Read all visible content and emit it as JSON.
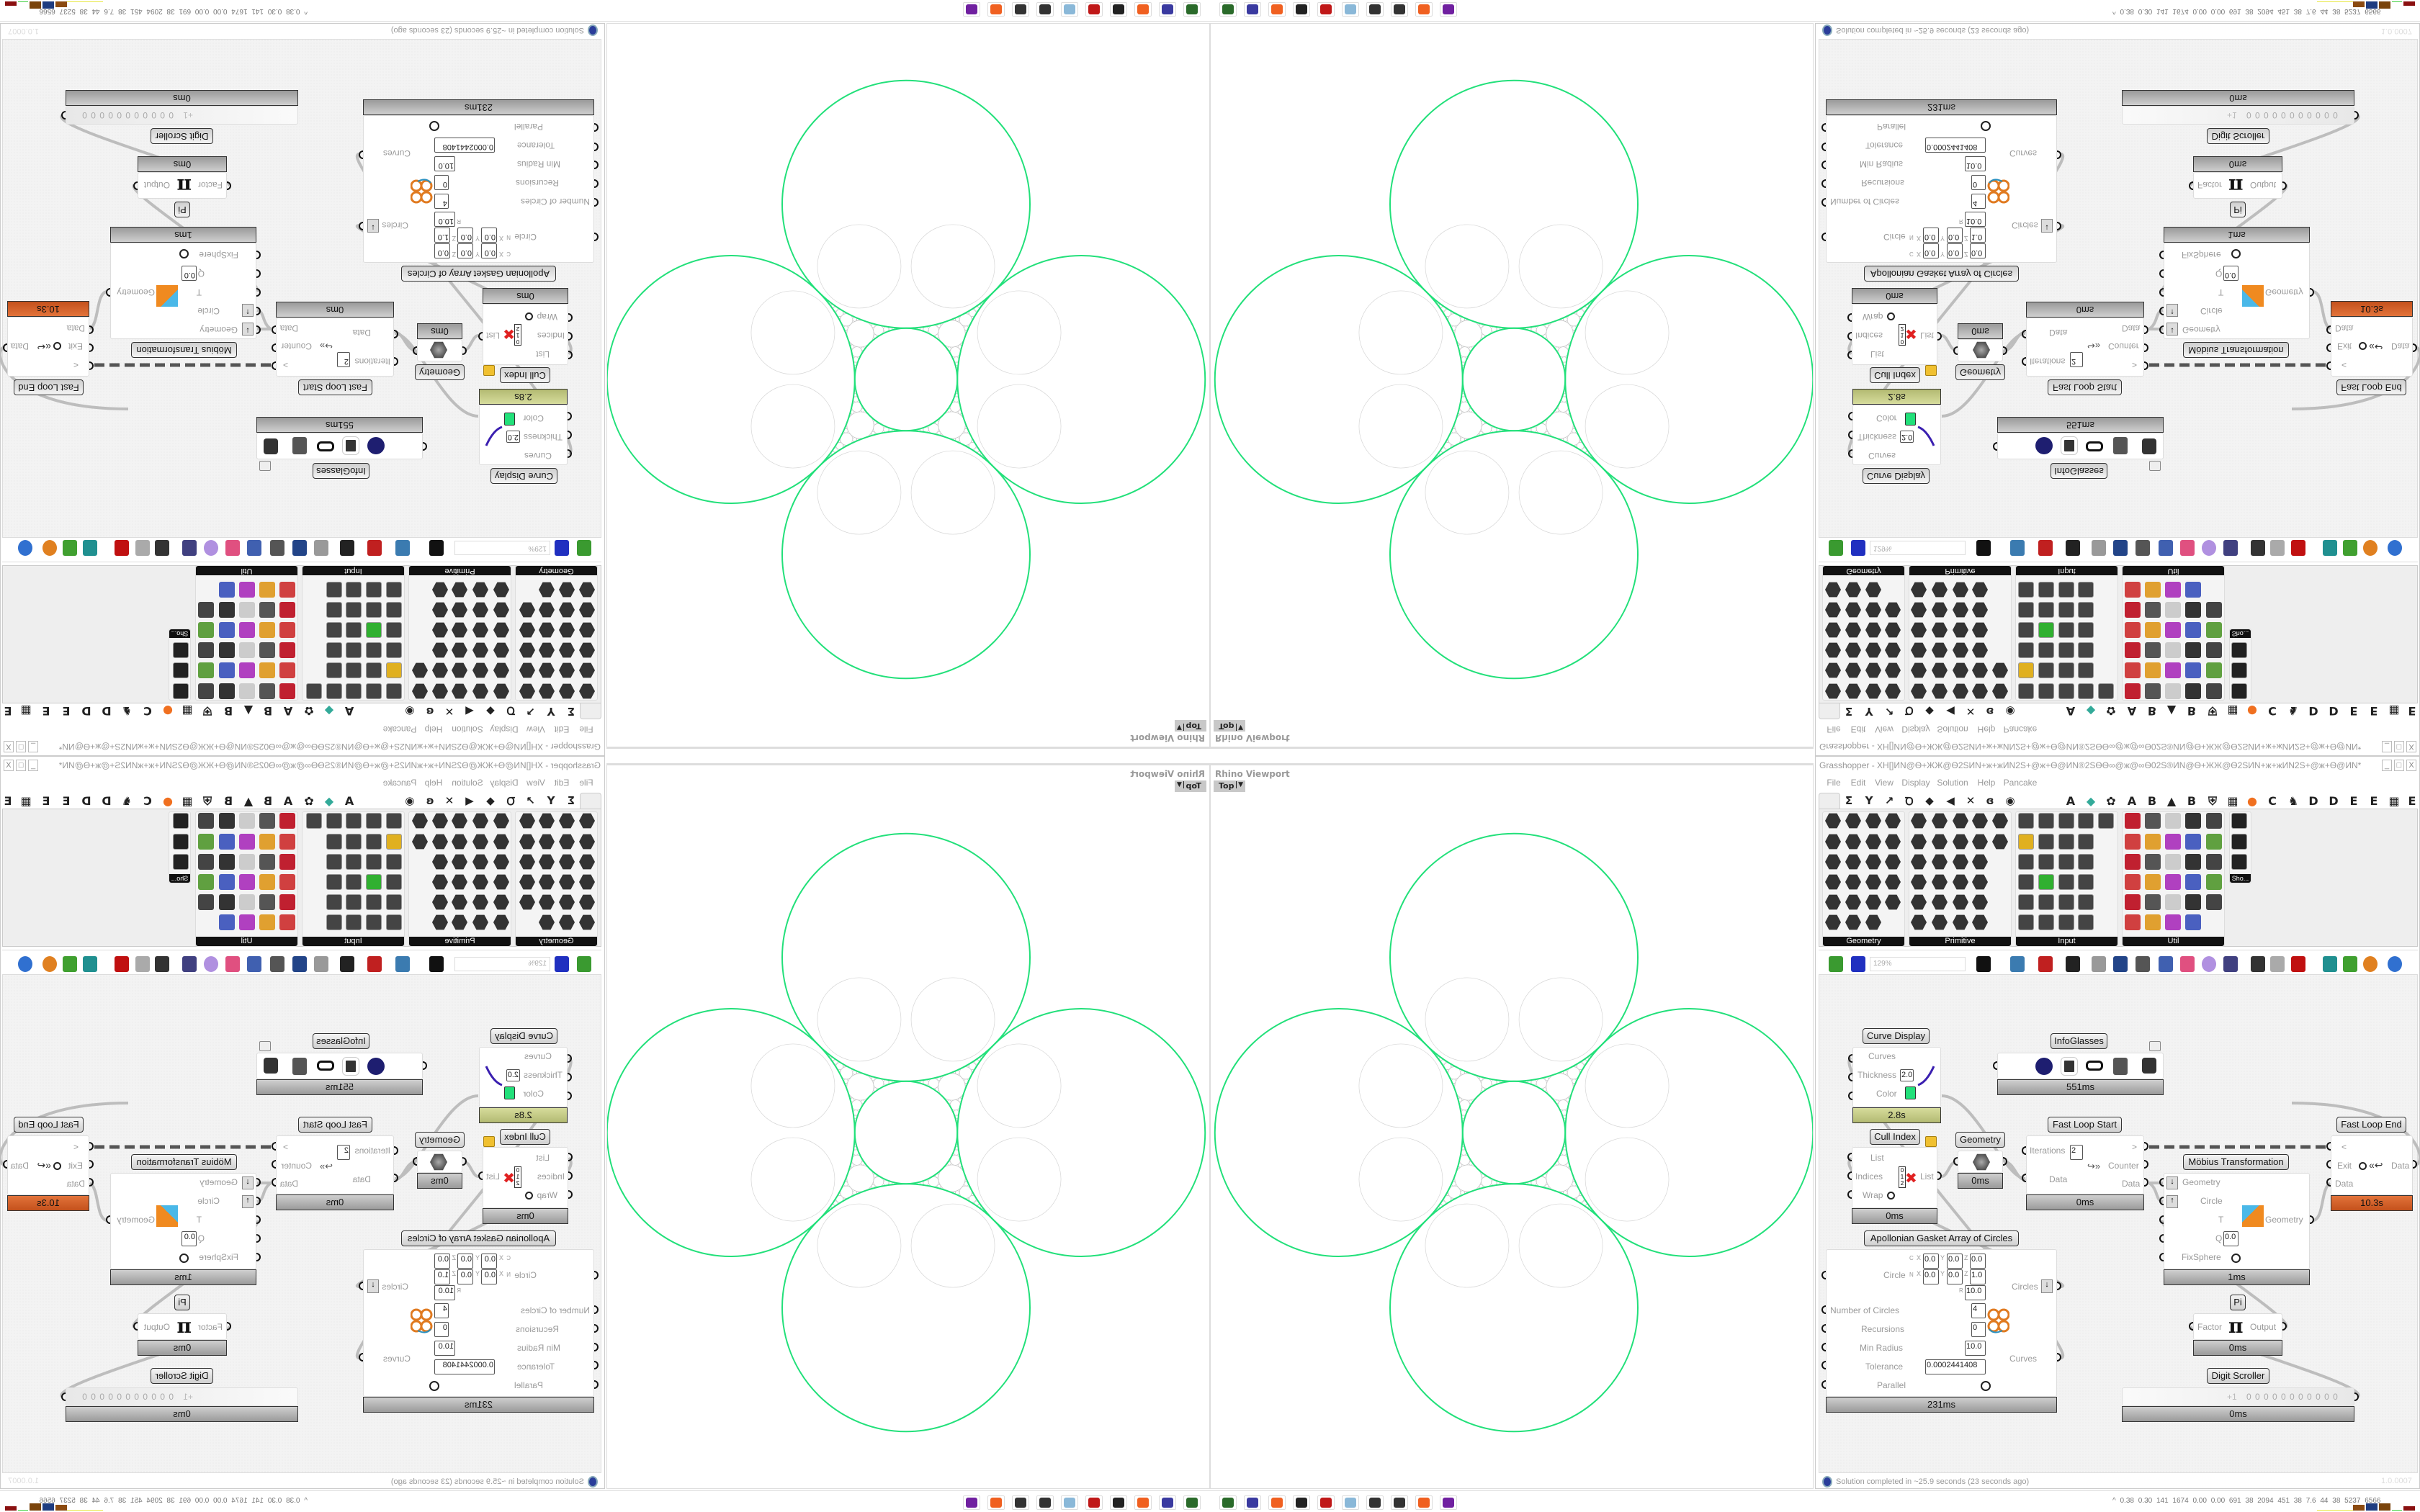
{
  "viewport": {
    "title": "Rhino Viewport",
    "view_tab": "Top"
  },
  "grasshopper": {
    "title": "Grasshopper - XH[]ИN@Ѳ+ЖЖ@Ѳ2SИN+ж+жИN2S+@ж+Ѳ@ИN®2SѲѲ∞@ж@∞Ѳ02S®ИN@Ѳ+ЖЖ@Ѳ2SИN+ж+жИN2S+@ж+Ѳ@ИN*",
    "window_buttons": [
      "_",
      "□",
      "X"
    ],
    "menu": [
      "File",
      "Edit",
      "View",
      "Display",
      "Solution",
      "Help",
      "Pancake"
    ],
    "tab_icons": [
      "params-icon",
      "maths-icon",
      "sets-icon",
      "vector-icon",
      "curve-icon",
      "surface-icon",
      "mesh-icon",
      "intersect-icon",
      "transform-icon",
      "display-icon"
    ],
    "tab_letters": [
      "A",
      "",
      "",
      "A",
      "B",
      "",
      "B",
      "",
      "",
      "",
      "C",
      "",
      "D",
      "D",
      "E",
      "E",
      "",
      "E"
    ],
    "ribbon_panels": [
      "Geometry",
      "Primitive",
      "Input",
      "Util"
    ],
    "ribbon_extra": "Sho...",
    "zoom": "129%",
    "status": "Solution completed in ~25.9 seconds (23 seconds ago)",
    "version": "1.0.0007",
    "accent_colors": {
      "curve_display_timer": "#c6cd8a",
      "loop_end_timer": "#d4622b",
      "curve_color": "#22e07a"
    }
  },
  "components": {
    "curve_display": {
      "label": "Curve Display",
      "inputs": [
        "Curves",
        "Thickness",
        "Color"
      ],
      "thickness": "2.0",
      "timer": "2.8s"
    },
    "infoglasses": {
      "label": "InfoGlasses",
      "timer": "551ms"
    },
    "cull_index": {
      "label": "Cull Index",
      "inputs": [
        "List",
        "Indices",
        "Wrap"
      ],
      "output": "List",
      "timer": "0ms"
    },
    "geometry": {
      "label": "Geometry",
      "timer": "0ms"
    },
    "fast_loop_start": {
      "label": "Fast Loop Start",
      "iterations_label": "Iterations",
      "iterations": "2",
      "arrow": ">",
      "counter": "Counter",
      "data_in": "Data",
      "data_out": "Data",
      "timer": "0ms"
    },
    "fast_loop_end": {
      "label": "Fast Loop End",
      "arrow": "<",
      "exit": "Exit",
      "data_out": "Data",
      "data_in": "Data",
      "timer": "10.3s"
    },
    "mobius": {
      "label": "Möbius Transformation",
      "inputs": [
        "Geometry",
        "Circle",
        "T",
        "Q",
        "FixSphere"
      ],
      "q": "0.0",
      "output": "Geometry",
      "timer": "1ms"
    },
    "apollonian": {
      "label": "Apollonian Gasket Array of Circles",
      "c_label": "C",
      "circle_label": "Circle",
      "n_label": "N",
      "r_label": "R",
      "x": "X",
      "y": "Y",
      "z": "Z",
      "c": [
        "0.0",
        "0.0",
        "0.0"
      ],
      "n": [
        "0.0",
        "0.0",
        "1.0"
      ],
      "r": "10.0",
      "params": [
        {
          "name": "Number of Circles",
          "value": "4"
        },
        {
          "name": "Recursions",
          "value": "0"
        },
        {
          "name": "Min Radius",
          "value": "10.0"
        },
        {
          "name": "Tolerance",
          "value": "0.0002441408"
        },
        {
          "name": "Parallel",
          "value": ""
        }
      ],
      "outputs": [
        "Circles",
        "Curves"
      ],
      "timer": "231ms"
    },
    "pi": {
      "label": "Pi",
      "input": "Factor",
      "symbol": "π",
      "output": "Output",
      "timer": "0ms"
    },
    "digit_scroller": {
      "label": "Digit Scroller",
      "sign": "+1",
      "digits": "0 0 0 0 0 0 0 0 0 0 0",
      "timer": "0ms"
    }
  },
  "taskbar": {
    "apps": [
      "terminal-app-icon",
      "floppy-64-icon",
      "firefox-icon",
      "rhino-icon",
      "red-gear-app-icon",
      "notepad-icon",
      "grasshopper-h3-icon",
      "grasshopper-h3-icon",
      "firefox-icon",
      "purple-app-icon"
    ],
    "tray_text": "0.38 0.30 141 1674 0.00 0.00 691 38 2094 451 38 7.6 44 38 5237 6566",
    "tray_expand": "^"
  }
}
